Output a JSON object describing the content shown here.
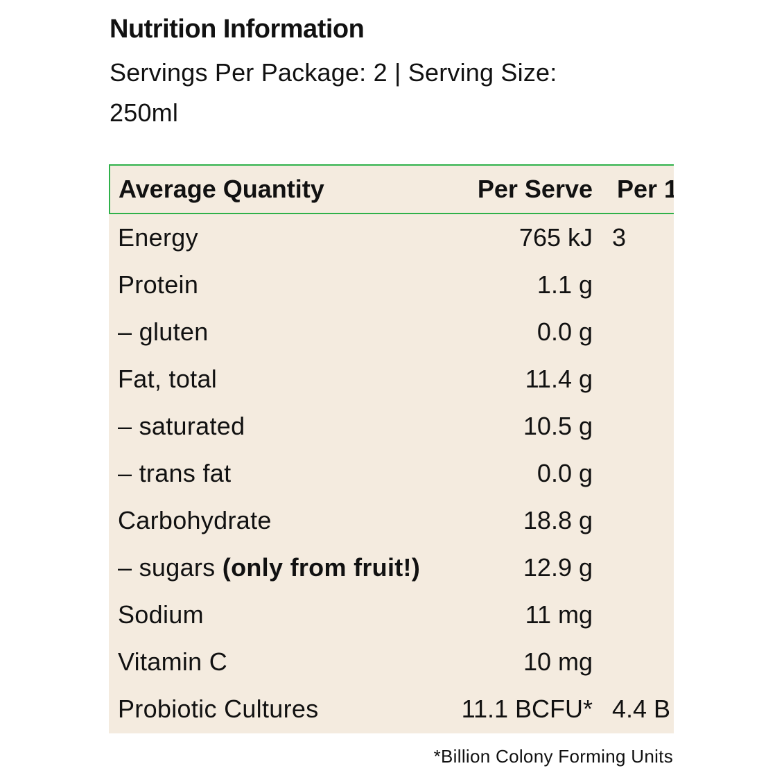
{
  "panel": {
    "title": "Nutrition Information",
    "subtitle": "Servings Per Package: 2 | Serving Size: 250ml"
  },
  "table": {
    "headers": [
      "Average Quantity",
      "Per Serve",
      "Per 1"
    ],
    "rows": [
      {
        "label": "Energy",
        "note": "",
        "per_serve": "765 kJ",
        "per_100": "3"
      },
      {
        "label": "Protein",
        "note": "",
        "per_serve": "1.1 g",
        "per_100": ""
      },
      {
        "label": "– gluten",
        "note": "",
        "per_serve": "0.0 g",
        "per_100": ""
      },
      {
        "label": "Fat, total",
        "note": "",
        "per_serve": "11.4 g",
        "per_100": ""
      },
      {
        "label": "– saturated",
        "note": "",
        "per_serve": "10.5 g",
        "per_100": ""
      },
      {
        "label": "– trans fat",
        "note": "",
        "per_serve": "0.0 g",
        "per_100": ""
      },
      {
        "label": "Carbohydrate",
        "note": "",
        "per_serve": "18.8 g",
        "per_100": ""
      },
      {
        "label": "– sugars ",
        "note": "(only from fruit!)",
        "per_serve": "12.9 g",
        "per_100": ""
      },
      {
        "label": "Sodium",
        "note": "",
        "per_serve": "11 mg",
        "per_100": ""
      },
      {
        "label": "Vitamin C",
        "note": "",
        "per_serve": "10 mg",
        "per_100": ""
      },
      {
        "label": "Probiotic Cultures",
        "note": "",
        "per_serve": "11.1 BCFU*",
        "per_100": "4.4 B"
      }
    ]
  },
  "footnote": "*Billion Colony Forming Units",
  "colors": {
    "table_background": "#f4ebdf",
    "header_border": "#2fb14a",
    "text": "#111111"
  }
}
